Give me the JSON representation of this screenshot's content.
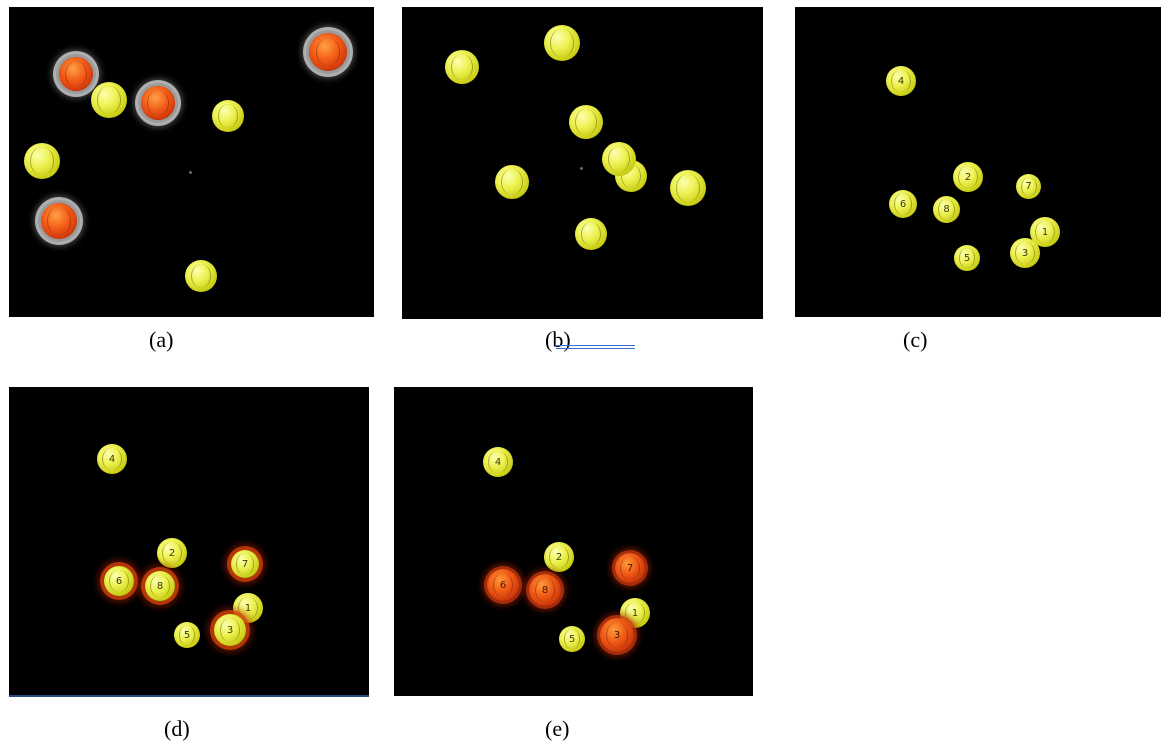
{
  "panels": [
    {
      "id": "a",
      "caption": "(a)"
    },
    {
      "id": "b",
      "caption": "(b)"
    },
    {
      "id": "c",
      "caption": "(c)"
    },
    {
      "id": "d",
      "caption": "(d)"
    },
    {
      "id": "e",
      "caption": "(e)"
    }
  ],
  "ball_numbers": [
    "1",
    "2",
    "3",
    "4",
    "5",
    "6",
    "7",
    "8"
  ],
  "colors": {
    "background": "#000000",
    "ball_yellow": "#e3e83a",
    "ball_red": "#e8501a",
    "halo_white": "#d9d9d9",
    "halo_red": "#c2360c"
  }
}
